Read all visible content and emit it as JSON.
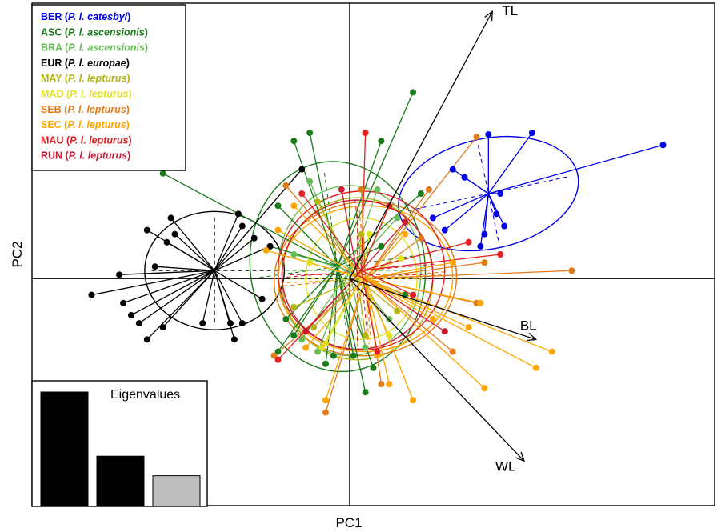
{
  "chart_data": {
    "type": "scatter",
    "subtype": "PCA biplot with group ellipses and spider lines",
    "xlabel": "PC1",
    "ylabel": "PC2",
    "xlim": [
      -4.0,
      4.6
    ],
    "ylim": [
      -2.8,
      3.4
    ],
    "grid": false,
    "legend_position": "top-left",
    "origin_lines": true,
    "groups": [
      {
        "code": "BER",
        "prefix": "BER (",
        "taxon": "P. l. catesbyi",
        "suffix": ")",
        "color": "#0000e6",
        "center": [
          1.75,
          1.05
        ],
        "ellipse": [
          1.15,
          0.68,
          -12
        ],
        "points": [
          [
            2.3,
            1.8
          ],
          [
            3.95,
            1.65
          ],
          [
            1.75,
            1.78
          ],
          [
            1.3,
            1.35
          ],
          [
            1.45,
            1.25
          ],
          [
            1.9,
            1.05
          ],
          [
            1.85,
            0.8
          ],
          [
            1.7,
            0.55
          ],
          [
            1.2,
            0.6
          ],
          [
            1.05,
            0.75
          ],
          [
            1.95,
            0.65
          ],
          [
            1.65,
            0.4
          ]
        ]
      },
      {
        "code": "ASC",
        "prefix": "ASC (",
        "taxon": "P. l. ascensionis",
        "suffix": ")",
        "color": "#1a7a1a",
        "center": [
          -0.15,
          0.15
        ],
        "ellipse": [
          1.1,
          1.3,
          -8
        ],
        "points": [
          [
            -2.35,
            1.3
          ],
          [
            0.8,
            2.3
          ],
          [
            -0.7,
            1.7
          ],
          [
            -0.5,
            1.8
          ],
          [
            0.4,
            1.7
          ],
          [
            0.9,
            1.05
          ],
          [
            -0.9,
            0.9
          ],
          [
            -1.0,
            0.4
          ],
          [
            -0.8,
            -0.5
          ],
          [
            -0.9,
            -0.9
          ],
          [
            -0.3,
            -1.05
          ],
          [
            -0.2,
            -0.95
          ],
          [
            0.05,
            -0.95
          ],
          [
            0.2,
            -1.4
          ],
          [
            0.3,
            -1.1
          ],
          [
            -0.7,
            -0.7
          ],
          [
            0.4,
            0.4
          ],
          [
            0.7,
            -0.2
          ]
        ]
      },
      {
        "code": "BRA",
        "prefix": "BRA (",
        "taxon": "P. l. ascensionis",
        "suffix": ")",
        "color": "#66bb55",
        "center": [
          0.0,
          0.1
        ],
        "ellipse": [
          0.9,
          1.05,
          0
        ],
        "points": [
          [
            -0.5,
            1.2
          ],
          [
            0.35,
            1.1
          ],
          [
            -0.6,
            -0.75
          ],
          [
            -0.4,
            -0.9
          ],
          [
            0.2,
            -0.85
          ],
          [
            0.5,
            -0.5
          ],
          [
            -0.7,
            0.3
          ],
          [
            0.6,
            0.75
          ]
        ]
      },
      {
        "code": "EUR",
        "prefix": "EUR (",
        "taxon": "P. l. europae",
        "suffix": ")",
        "color": "#000000",
        "center": [
          -1.7,
          0.1
        ],
        "ellipse": [
          0.88,
          0.73,
          0
        ],
        "points": [
          [
            -0.6,
            1.35
          ],
          [
            -3.25,
            -0.2
          ],
          [
            -2.25,
            0.75
          ],
          [
            -2.55,
            0.6
          ],
          [
            -2.3,
            0.45
          ],
          [
            -2.45,
            0.15
          ],
          [
            -2.9,
            0.05
          ],
          [
            -2.85,
            -0.3
          ],
          [
            -2.75,
            -0.45
          ],
          [
            -2.65,
            -0.55
          ],
          [
            -2.55,
            -0.75
          ],
          [
            -2.35,
            -0.6
          ],
          [
            -1.85,
            -0.55
          ],
          [
            -1.5,
            -0.55
          ],
          [
            -1.45,
            -0.75
          ],
          [
            -1.35,
            -0.55
          ],
          [
            -1.1,
            -0.25
          ],
          [
            -1.4,
            0.8
          ],
          [
            -1.35,
            0.65
          ],
          [
            -1.2,
            0.5
          ],
          [
            -1.0,
            0.4
          ],
          [
            -2.2,
            0.55
          ]
        ]
      },
      {
        "code": "MAY",
        "prefix": "MAY (",
        "taxon": "P. l. lepturus",
        "suffix": ")",
        "color": "#b5b512",
        "center": [
          0.1,
          0.0
        ],
        "ellipse": [
          0.95,
          1.0,
          0
        ],
        "points": [
          [
            -0.4,
            0.95
          ],
          [
            0.5,
            0.9
          ],
          [
            -0.7,
            -0.35
          ],
          [
            -0.45,
            -0.6
          ],
          [
            0.2,
            -0.7
          ],
          [
            0.6,
            -0.4
          ],
          [
            0.15,
            0.55
          ]
        ]
      },
      {
        "code": "MAD",
        "prefix": "MAD (",
        "taxon": "P. l. lepturus",
        "suffix": ")",
        "color": "#e0e020",
        "center": [
          0.15,
          0.0
        ],
        "ellipse": [
          0.7,
          0.75,
          0
        ],
        "points": [
          [
            -0.3,
            -0.8
          ],
          [
            -0.35,
            -0.85
          ],
          [
            0.5,
            -0.7
          ],
          [
            0.25,
            0.55
          ],
          [
            -0.5,
            0.2
          ],
          [
            0.65,
            0.25
          ]
        ]
      },
      {
        "code": "SEB",
        "prefix": "SEB (",
        "taxon": "P. l. lepturus",
        "suffix": ")",
        "color": "#e07b1a",
        "center": [
          0.2,
          0.0
        ],
        "ellipse": [
          1.15,
          0.95,
          -5
        ],
        "points": [
          [
            1.6,
            1.75
          ],
          [
            2.8,
            0.1
          ],
          [
            1.7,
            0.2
          ],
          [
            1.6,
            -0.3
          ],
          [
            1.3,
            -0.9
          ],
          [
            -0.3,
            -1.65
          ],
          [
            0.4,
            -1.3
          ],
          [
            -0.95,
            -0.95
          ],
          [
            -0.8,
            1.15
          ],
          [
            0.15,
            1.1
          ],
          [
            1.0,
            1.1
          ],
          [
            0.9,
            0.5
          ]
        ]
      },
      {
        "code": "SEC",
        "prefix": "SEC (",
        "taxon": "P. l. lepturus",
        "suffix": ")",
        "color": "#ffa500",
        "center": [
          0.2,
          0.0
        ],
        "ellipse": [
          1.1,
          0.9,
          -3
        ],
        "points": [
          [
            1.65,
            -0.3
          ],
          [
            1.5,
            -0.6
          ],
          [
            2.55,
            -0.9
          ],
          [
            2.35,
            -1.1
          ],
          [
            1.7,
            -1.35
          ],
          [
            0.8,
            -1.5
          ],
          [
            0.5,
            -1.3
          ],
          [
            -0.3,
            -1.5
          ],
          [
            -0.55,
            -0.85
          ],
          [
            -0.9,
            0.6
          ],
          [
            -1.05,
            0.35
          ],
          [
            -0.7,
            0.9
          ],
          [
            1.3,
            0.2
          ],
          [
            0.7,
            0.55
          ],
          [
            1.05,
            -0.5
          ],
          [
            0.35,
            -0.95
          ]
        ]
      },
      {
        "code": "MAU",
        "prefix": "MAU (",
        "taxon": "P. l. lepturus",
        "suffix": ")",
        "color": "#e02020",
        "center": [
          0.15,
          0.1
        ],
        "ellipse": [
          1.05,
          0.98,
          -5
        ],
        "points": [
          [
            0.2,
            1.8
          ],
          [
            -0.6,
            1.05
          ],
          [
            0.5,
            0.9
          ],
          [
            1.9,
            0.3
          ],
          [
            1.5,
            0.45
          ],
          [
            -0.9,
            -1.0
          ],
          [
            0.35,
            -0.9
          ],
          [
            0.8,
            -0.2
          ]
        ]
      },
      {
        "code": "RUN",
        "prefix": "RUN (",
        "taxon": "P. l. lepturus",
        "suffix": ")",
        "color": "#cc1a33",
        "center": [
          0.1,
          0.05
        ],
        "ellipse": [
          0.95,
          0.92,
          0
        ],
        "points": [
          [
            -0.1,
            1.1
          ],
          [
            1.2,
            -0.65
          ],
          [
            -0.55,
            -0.65
          ],
          [
            0.7,
            0.7
          ]
        ]
      }
    ],
    "loading_arrows": [
      {
        "label": "TL",
        "end": [
          1.8,
          3.3
        ]
      },
      {
        "label": "BL",
        "end": [
          2.35,
          -0.75
        ]
      },
      {
        "label": "WL",
        "end": [
          2.2,
          -2.25
        ]
      }
    ],
    "inset": {
      "type": "bar",
      "title": "Eigenvalues",
      "values": [
        2.05,
        0.9,
        0.55
      ],
      "colors": [
        "#000000",
        "#000000",
        "#bebebe"
      ]
    }
  }
}
